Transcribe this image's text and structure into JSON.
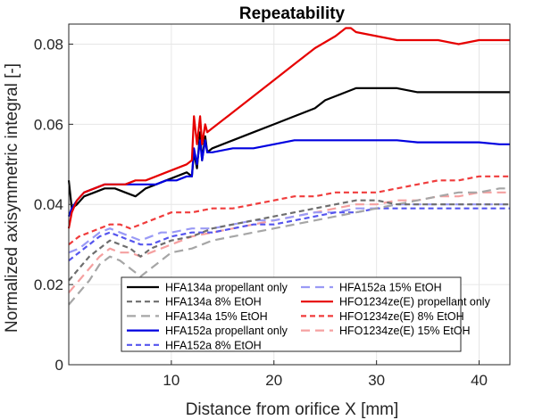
{
  "chart_data": {
    "type": "line",
    "title": "Repeatability",
    "xlabel": "Distance from orifice X [mm]",
    "ylabel": "Normalized axisymmetric integral [-]",
    "xlim": [
      0,
      43
    ],
    "ylim": [
      0,
      0.085
    ],
    "xticks": [
      10,
      20,
      30,
      40
    ],
    "yticks": [
      0,
      0.02,
      0.04,
      0.06,
      0.08
    ],
    "ytick_labels": [
      "0",
      "0.02",
      "0.04",
      "0.06",
      "0.08"
    ],
    "grid": true,
    "legend_position": "bottom-center",
    "series": [
      {
        "name": "HFA134a propellant only",
        "color": "#000000",
        "dash": "solid",
        "x": [
          0,
          0.3,
          0.8,
          1.5,
          2.5,
          3.5,
          4.5,
          5.5,
          6.5,
          7.5,
          8.5,
          9.5,
          10.5,
          11.5,
          12.0,
          12.2,
          12.5,
          12.8,
          13.0,
          13.3,
          13.5,
          14,
          16,
          18,
          20,
          22,
          24,
          25,
          26,
          27,
          28,
          30,
          32,
          34,
          36,
          38,
          40,
          42,
          43
        ],
        "y": [
          0.046,
          0.039,
          0.04,
          0.042,
          0.043,
          0.044,
          0.044,
          0.043,
          0.042,
          0.044,
          0.045,
          0.046,
          0.047,
          0.048,
          0.047,
          0.053,
          0.049,
          0.058,
          0.051,
          0.057,
          0.053,
          0.054,
          0.056,
          0.058,
          0.06,
          0.062,
          0.064,
          0.066,
          0.067,
          0.068,
          0.069,
          0.069,
          0.069,
          0.068,
          0.068,
          0.068,
          0.068,
          0.068,
          0.068
        ]
      },
      {
        "name": "HFA134a 8% EtOH",
        "color": "#6e6e6e",
        "dash": "6,4",
        "x": [
          0,
          1,
          2,
          3,
          4,
          5,
          6,
          7,
          8,
          9,
          10,
          12,
          14,
          16,
          18,
          20,
          22,
          24,
          26,
          28,
          30,
          32,
          34,
          36,
          38,
          40,
          42,
          43
        ],
        "y": [
          0.021,
          0.024,
          0.027,
          0.029,
          0.031,
          0.03,
          0.029,
          0.027,
          0.029,
          0.03,
          0.031,
          0.032,
          0.034,
          0.035,
          0.036,
          0.037,
          0.038,
          0.039,
          0.04,
          0.041,
          0.041,
          0.04,
          0.04,
          0.04,
          0.04,
          0.04,
          0.04,
          0.04
        ]
      },
      {
        "name": "HFA134a 15% EtOH",
        "color": "#a6a6a6",
        "dash": "10,6",
        "x": [
          0,
          1,
          2,
          3,
          4,
          5,
          6,
          7,
          8,
          9,
          10,
          12,
          14,
          16,
          18,
          20,
          22,
          24,
          26,
          28,
          30,
          32,
          34,
          36,
          38,
          40,
          42,
          43
        ],
        "y": [
          0.015,
          0.018,
          0.021,
          0.025,
          0.027,
          0.026,
          0.024,
          0.022,
          0.024,
          0.026,
          0.028,
          0.029,
          0.031,
          0.032,
          0.033,
          0.034,
          0.035,
          0.036,
          0.037,
          0.038,
          0.039,
          0.04,
          0.041,
          0.042,
          0.043,
          0.043,
          0.044,
          0.044
        ]
      },
      {
        "name": "HFA152a propellant only",
        "color": "#0000e0",
        "dash": "solid",
        "x": [
          0,
          0.3,
          0.8,
          1.5,
          2.5,
          3.5,
          4.5,
          5.5,
          6.5,
          7.5,
          8.5,
          9.5,
          10.5,
          11.5,
          12.0,
          12.2,
          12.5,
          12.8,
          13.0,
          13.3,
          13.5,
          14,
          16,
          18,
          20,
          22,
          24,
          26,
          28,
          30,
          32,
          34,
          36,
          38,
          40,
          42,
          43
        ],
        "y": [
          0.037,
          0.039,
          0.041,
          0.043,
          0.044,
          0.045,
          0.045,
          0.045,
          0.045,
          0.045,
          0.045,
          0.046,
          0.046,
          0.047,
          0.047,
          0.054,
          0.05,
          0.056,
          0.051,
          0.056,
          0.053,
          0.053,
          0.054,
          0.054,
          0.055,
          0.056,
          0.056,
          0.056,
          0.056,
          0.056,
          0.056,
          0.0555,
          0.0555,
          0.0555,
          0.0555,
          0.055,
          0.055
        ]
      },
      {
        "name": "HFA152a 8% EtOH",
        "color": "#5555ee",
        "dash": "6,4",
        "x": [
          0,
          1,
          2,
          3,
          4,
          5,
          6,
          7,
          8,
          9,
          10,
          12,
          14,
          16,
          18,
          20,
          22,
          24,
          26,
          28,
          30,
          32,
          34,
          36,
          38,
          40,
          42,
          43
        ],
        "y": [
          0.026,
          0.028,
          0.03,
          0.032,
          0.033,
          0.032,
          0.031,
          0.03,
          0.03,
          0.031,
          0.032,
          0.033,
          0.033,
          0.034,
          0.035,
          0.035,
          0.036,
          0.037,
          0.038,
          0.038,
          0.039,
          0.039,
          0.039,
          0.039,
          0.039,
          0.039,
          0.039,
          0.039
        ]
      },
      {
        "name": "HFA152a 15% EtOH",
        "color": "#9a9af5",
        "dash": "10,6",
        "x": [
          0,
          1,
          2,
          3,
          4,
          5,
          6,
          7,
          8,
          9,
          10,
          12,
          14,
          16,
          18,
          20,
          22,
          24,
          26,
          28,
          30,
          32,
          34,
          36,
          38,
          40,
          42,
          43
        ],
        "y": [
          0.028,
          0.029,
          0.031,
          0.033,
          0.034,
          0.033,
          0.032,
          0.031,
          0.032,
          0.033,
          0.033,
          0.034,
          0.034,
          0.035,
          0.036,
          0.036,
          0.037,
          0.038,
          0.038,
          0.039,
          0.039,
          0.04,
          0.04,
          0.04,
          0.04,
          0.04,
          0.04,
          0.04
        ]
      },
      {
        "name": "HFO1234ze(E) propellant only",
        "color": "#e60000",
        "dash": "solid",
        "x": [
          0,
          0.3,
          0.8,
          1.5,
          2.5,
          3.5,
          4.5,
          5.5,
          6.5,
          7.5,
          8.5,
          9.5,
          10.5,
          11.5,
          12.0,
          12.2,
          12.5,
          12.8,
          13.0,
          13.3,
          13.5,
          14,
          16,
          18,
          20,
          22,
          24,
          26,
          27,
          27.5,
          28,
          30,
          32,
          34,
          36,
          38,
          40,
          42,
          43
        ],
        "y": [
          0.034,
          0.038,
          0.041,
          0.043,
          0.044,
          0.045,
          0.045,
          0.045,
          0.046,
          0.046,
          0.047,
          0.048,
          0.049,
          0.05,
          0.051,
          0.062,
          0.055,
          0.062,
          0.055,
          0.06,
          0.058,
          0.059,
          0.063,
          0.067,
          0.071,
          0.075,
          0.079,
          0.082,
          0.084,
          0.084,
          0.083,
          0.082,
          0.081,
          0.081,
          0.081,
          0.08,
          0.081,
          0.081,
          0.081
        ]
      },
      {
        "name": "HFO1234ze(E) 8% EtOH",
        "color": "#f03c3c",
        "dash": "6,4",
        "x": [
          0,
          1,
          2,
          3,
          4,
          5,
          6,
          7,
          8,
          9,
          10,
          12,
          14,
          16,
          18,
          20,
          22,
          24,
          26,
          28,
          30,
          32,
          34,
          36,
          38,
          40,
          42,
          43
        ],
        "y": [
          0.03,
          0.032,
          0.033,
          0.034,
          0.035,
          0.035,
          0.034,
          0.035,
          0.036,
          0.037,
          0.038,
          0.038,
          0.039,
          0.039,
          0.04,
          0.041,
          0.042,
          0.042,
          0.043,
          0.043,
          0.043,
          0.044,
          0.045,
          0.046,
          0.046,
          0.047,
          0.047,
          0.047
        ]
      },
      {
        "name": "HFO1234ze(E) 15% EtOH",
        "color": "#f5a0a0",
        "dash": "10,6",
        "x": [
          0,
          1,
          2,
          3,
          4,
          5,
          6,
          7,
          8,
          9,
          10,
          12,
          14,
          16,
          18,
          20,
          22,
          24,
          26,
          28,
          30,
          32,
          34,
          36,
          38,
          40,
          42,
          43
        ],
        "y": [
          0.018,
          0.021,
          0.024,
          0.027,
          0.029,
          0.028,
          0.028,
          0.027,
          0.028,
          0.029,
          0.03,
          0.032,
          0.033,
          0.034,
          0.035,
          0.036,
          0.037,
          0.038,
          0.039,
          0.04,
          0.04,
          0.041,
          0.041,
          0.042,
          0.042,
          0.043,
          0.043,
          0.043
        ]
      }
    ]
  }
}
